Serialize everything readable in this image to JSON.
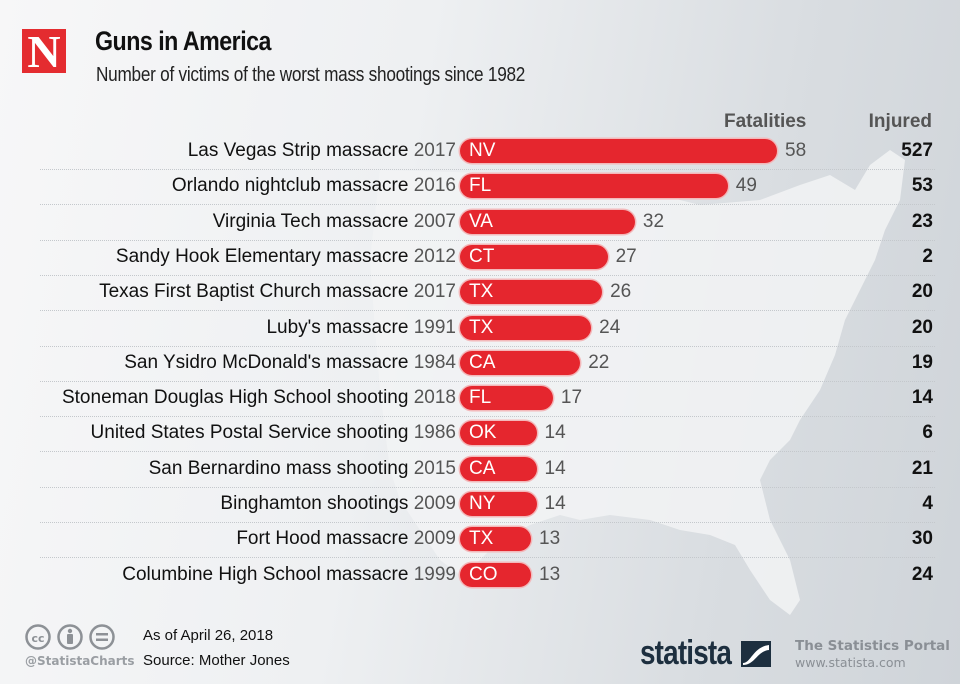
{
  "header": {
    "logo_letter": "N",
    "title": "Guns in America",
    "subtitle": "Number of victims of the worst mass shootings since 1982"
  },
  "columns": {
    "fatalities": "Fatalities",
    "injured": "Injured"
  },
  "colors": {
    "bar": "#e5262e",
    "logo": "#e42c30",
    "statista_brand": "#1d2f3f"
  },
  "chart_data": {
    "type": "bar",
    "orientation": "horizontal",
    "title": "Guns in America",
    "subtitle": "Number of victims of the worst mass shootings since 1982",
    "xlabel": "",
    "ylabel": "",
    "xlim": [
      0,
      58
    ],
    "grid": false,
    "categories": [
      {
        "name": "Las Vegas Strip massacre",
        "year": "2017",
        "state": "NV"
      },
      {
        "name": "Orlando nightclub massacre",
        "year": "2016",
        "state": "FL"
      },
      {
        "name": "Virginia Tech massacre",
        "year": "2007",
        "state": "VA"
      },
      {
        "name": "Sandy Hook Elementary massacre",
        "year": "2012",
        "state": "CT"
      },
      {
        "name": "Texas First Baptist Church massacre",
        "year": "2017",
        "state": "TX"
      },
      {
        "name": "Luby's massacre",
        "year": "1991",
        "state": "TX"
      },
      {
        "name": "San Ysidro McDonald's massacre",
        "year": "1984",
        "state": "CA"
      },
      {
        "name": "Stoneman Douglas High School shooting",
        "year": "2018",
        "state": "FL"
      },
      {
        "name": "United States Postal Service shooting",
        "year": "1986",
        "state": "OK"
      },
      {
        "name": "San Bernardino mass shooting",
        "year": "2015",
        "state": "CA"
      },
      {
        "name": "Binghamton shootings",
        "year": "2009",
        "state": "NY"
      },
      {
        "name": "Fort Hood massacre",
        "year": "2009",
        "state": "TX"
      },
      {
        "name": "Columbine High School massacre",
        "year": "1999",
        "state": "CO"
      }
    ],
    "series": [
      {
        "name": "Fatalities",
        "values": [
          58,
          49,
          32,
          27,
          26,
          24,
          22,
          17,
          14,
          14,
          14,
          13,
          13
        ]
      },
      {
        "name": "Injured",
        "values": [
          527,
          53,
          23,
          2,
          20,
          20,
          19,
          14,
          6,
          21,
          4,
          30,
          24
        ]
      }
    ]
  },
  "footer": {
    "license_icons": [
      "cc-icon",
      "attribution-icon",
      "no-derivatives-icon"
    ],
    "handle": "@StatistaCharts",
    "as_of": "As of April 26, 2018",
    "source": "Source: Mother Jones",
    "brand": "statista",
    "portal": "The Statistics Portal",
    "url": "www.statista.com"
  }
}
